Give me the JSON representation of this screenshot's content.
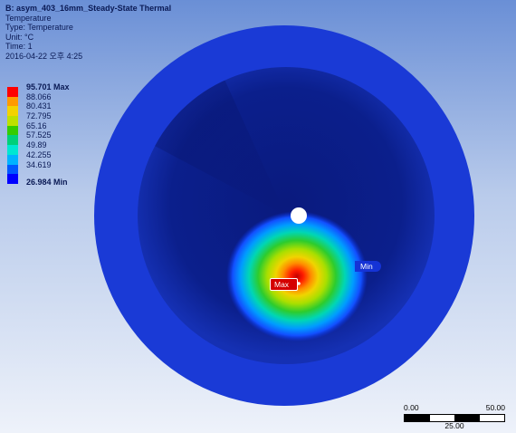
{
  "info": {
    "title": "B: asym_403_16mm_Steady-State Thermal",
    "result": "Temperature",
    "type": "Type: Temperature",
    "unit": "Unit: °C",
    "time": "Time: 1",
    "date": "2016-04-22 오후 4:25"
  },
  "legend": {
    "entries": [
      {
        "label": "95.701 Max",
        "color": "#ff0000"
      },
      {
        "label": "88.066",
        "color": "#ff9a00"
      },
      {
        "label": "80.431",
        "color": "#f3d200"
      },
      {
        "label": "72.795",
        "color": "#bde000"
      },
      {
        "label": "65.16",
        "color": "#35cc00"
      },
      {
        "label": "57.525",
        "color": "#00d07a"
      },
      {
        "label": "49.89",
        "color": "#00e7d2"
      },
      {
        "label": "42.255",
        "color": "#00b3ff"
      },
      {
        "label": "34.619",
        "color": "#0058ff"
      },
      {
        "label": "26.984 Min",
        "color": "#0000ff"
      }
    ]
  },
  "probes": {
    "max_label": "Max",
    "min_label": "Min"
  },
  "scale_bar": {
    "left_label": "0.00",
    "right_label": "50.00",
    "mid_label": "25.00"
  }
}
